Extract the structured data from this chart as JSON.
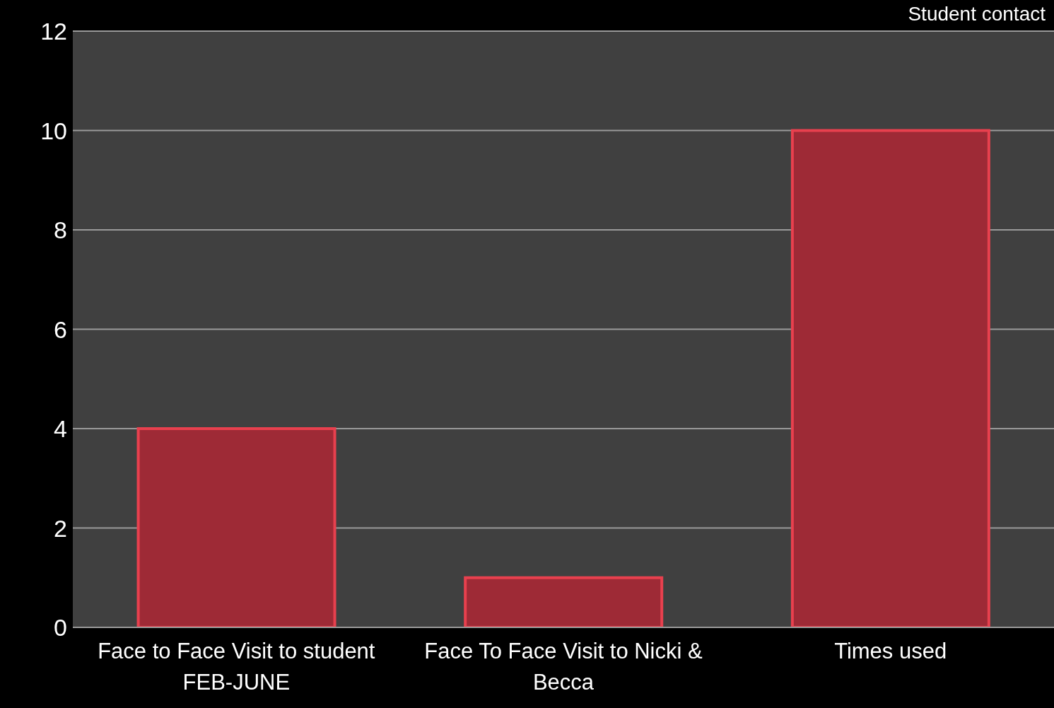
{
  "chart_data": {
    "type": "bar",
    "title": "Student contact",
    "categories": [
      "Face to Face Visit to student FEB-JUNE",
      "Face To Face Visit to Nicki & Becca",
      "Times used"
    ],
    "values": [
      4,
      1,
      10
    ],
    "color": "#9e2a36",
    "ylim": [
      0,
      12
    ],
    "yticks": [
      0,
      2,
      4,
      6,
      8,
      10,
      12
    ],
    "grid": "y"
  }
}
